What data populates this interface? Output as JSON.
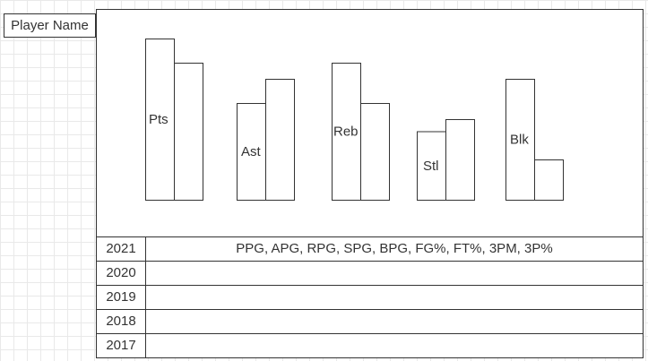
{
  "player": {
    "name_label": "Player Name"
  },
  "chart_data": {
    "type": "bar",
    "categories": [
      "Pts",
      "Ast",
      "Reb",
      "Stl",
      "Blk"
    ],
    "series": [
      {
        "values": [
          20,
          12,
          17,
          8.5,
          15
        ]
      },
      {
        "values": [
          17,
          15,
          12,
          10,
          5
        ]
      }
    ],
    "ylim": [
      0,
      25
    ],
    "grid": false
  },
  "table": {
    "rows": [
      {
        "year": "2021",
        "stats": "PPG, APG, RPG, SPG, BPG, FG%, FT%, 3PM, 3P%"
      },
      {
        "year": "2020",
        "stats": ""
      },
      {
        "year": "2019",
        "stats": ""
      },
      {
        "year": "2018",
        "stats": ""
      },
      {
        "year": "2017",
        "stats": ""
      }
    ]
  },
  "colors": {
    "line": "#333333",
    "grid": "#e9e9e9",
    "background": "#ffffff"
  }
}
